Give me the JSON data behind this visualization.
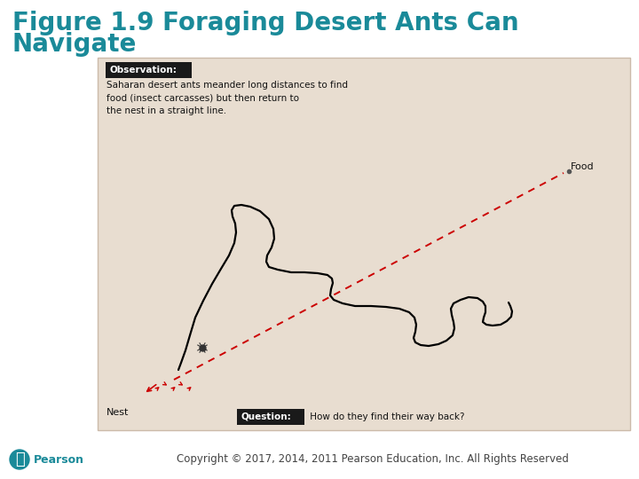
{
  "title_line1": "Figure 1.9 Foraging Desert Ants Can",
  "title_line2": "Navigate",
  "title_color": "#1a8a99",
  "title_fontsize": 20,
  "title_fontweight": "bold",
  "bg_color": "#ffffff",
  "copyright_text": "Copyright © 2017, 2014, 2011 Pearson Education, Inc. All Rights Reserved",
  "copyright_fontsize": 8.5,
  "pearson_color": "#1a8a99",
  "observation_label": "Observation:",
  "observation_text": "Saharan desert ants meander long distances to find\nfood (insect carcasses) but then return to\nthe nest in a straight line.",
  "question_label": "Question:",
  "question_text": " How do they find their way back?",
  "food_label": "Food",
  "nest_label": "Nest",
  "label_box_color": "#1a1a1a",
  "label_text_color": "#ffffff",
  "body_text_color": "#111111",
  "panel_bg": "#e8ddd0",
  "panel_border": "#ccbbaa"
}
